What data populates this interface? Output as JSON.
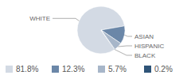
{
  "chart_data": {
    "type": "pie",
    "categories": [
      "WHITE",
      "ASIAN",
      "HISPANIC",
      "BLACK"
    ],
    "values": [
      81.8,
      12.3,
      5.7,
      0.2
    ],
    "value_labels": [
      "81.8%",
      "12.3%",
      "5.7%",
      "0.2%"
    ],
    "colors": [
      "#d3dae4",
      "#6b87a8",
      "#a7b6c9",
      "#2f5478"
    ],
    "legend": "bottom"
  }
}
